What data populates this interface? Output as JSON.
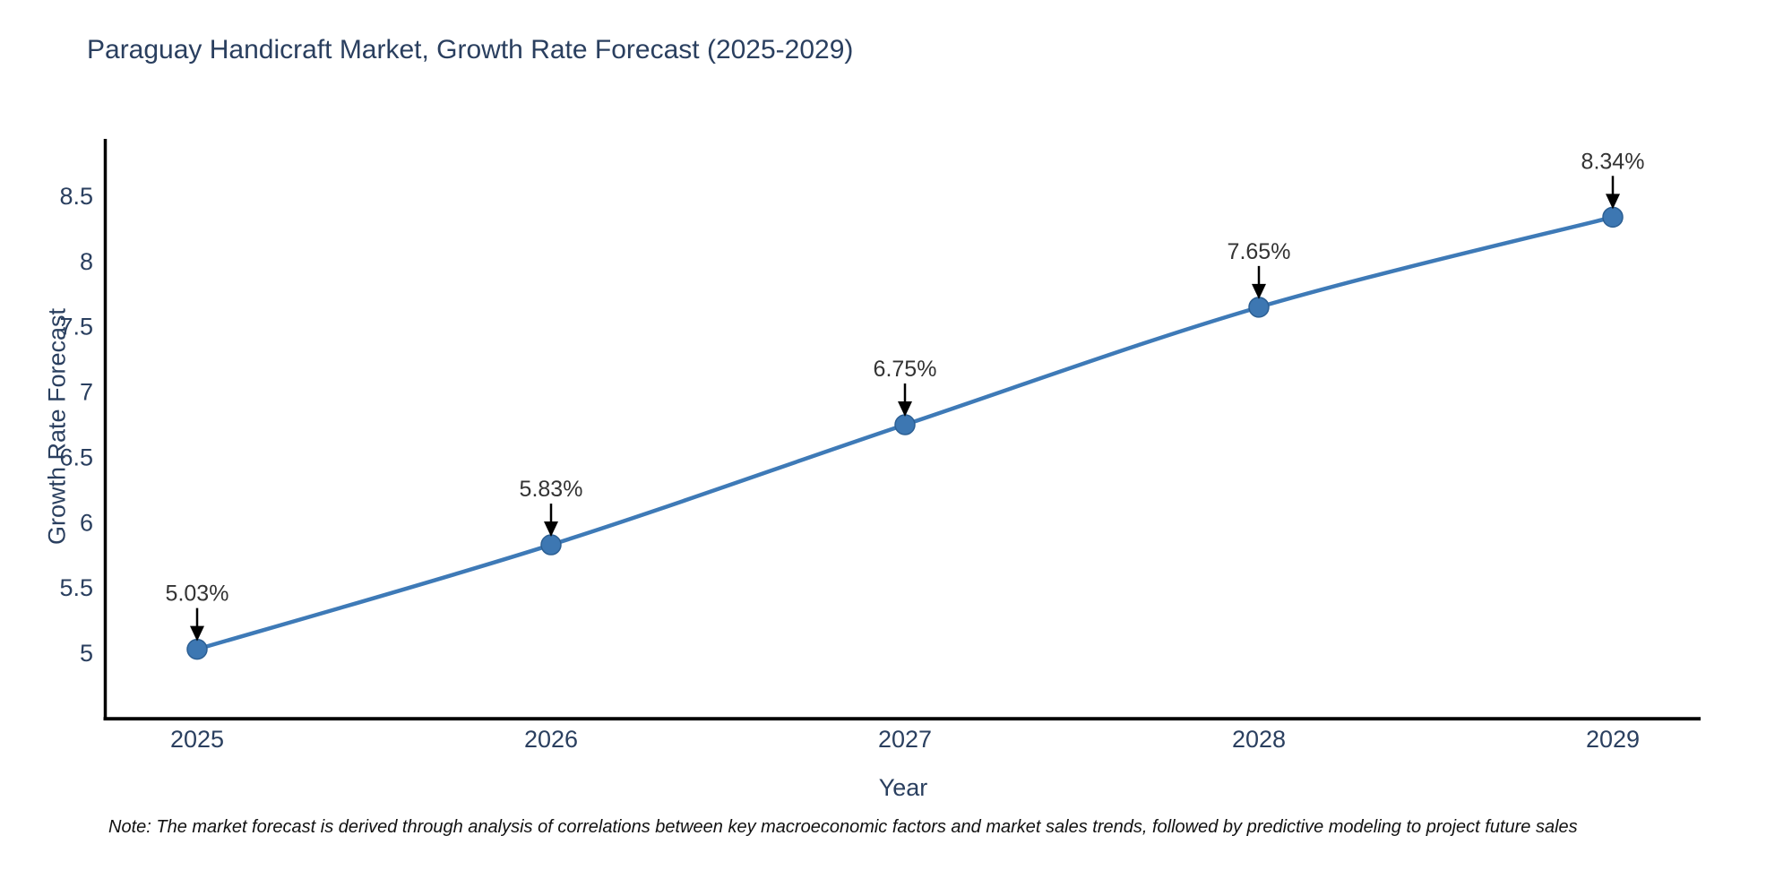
{
  "page": {
    "background": "#ffffff"
  },
  "chart_data": {
    "type": "line",
    "title": "Paraguay Handicraft Market, Growth Rate Forecast (2025-2029)",
    "xlabel": "Year",
    "ylabel": "Growth Rate Forecast",
    "categories": [
      "2025",
      "2026",
      "2027",
      "2028",
      "2029"
    ],
    "values": [
      5.03,
      5.83,
      6.75,
      7.65,
      8.34
    ],
    "point_labels": [
      "5.03%",
      "5.83%",
      "6.75%",
      "7.65%",
      "8.34%"
    ],
    "yticks": [
      "5",
      "5.5",
      "6",
      "6.5",
      "7",
      "7.5",
      "8",
      "8.5"
    ],
    "ylim": [
      4.5,
      8.94
    ],
    "grid": false,
    "legend": "none",
    "line_shape": "spline",
    "colors": {
      "line": "#3e7ab7",
      "marker": "#3d77b2",
      "marker_stroke": "#2c5f93",
      "axis": "#000000",
      "tick_text": "#2a3f5f",
      "annotation_text": "#333333",
      "arrow": "#000000"
    },
    "note": "Note: The market forecast is derived through analysis of correlations between key macroeconomic factors and market sales trends, followed by predictive modeling to project future sales"
  }
}
